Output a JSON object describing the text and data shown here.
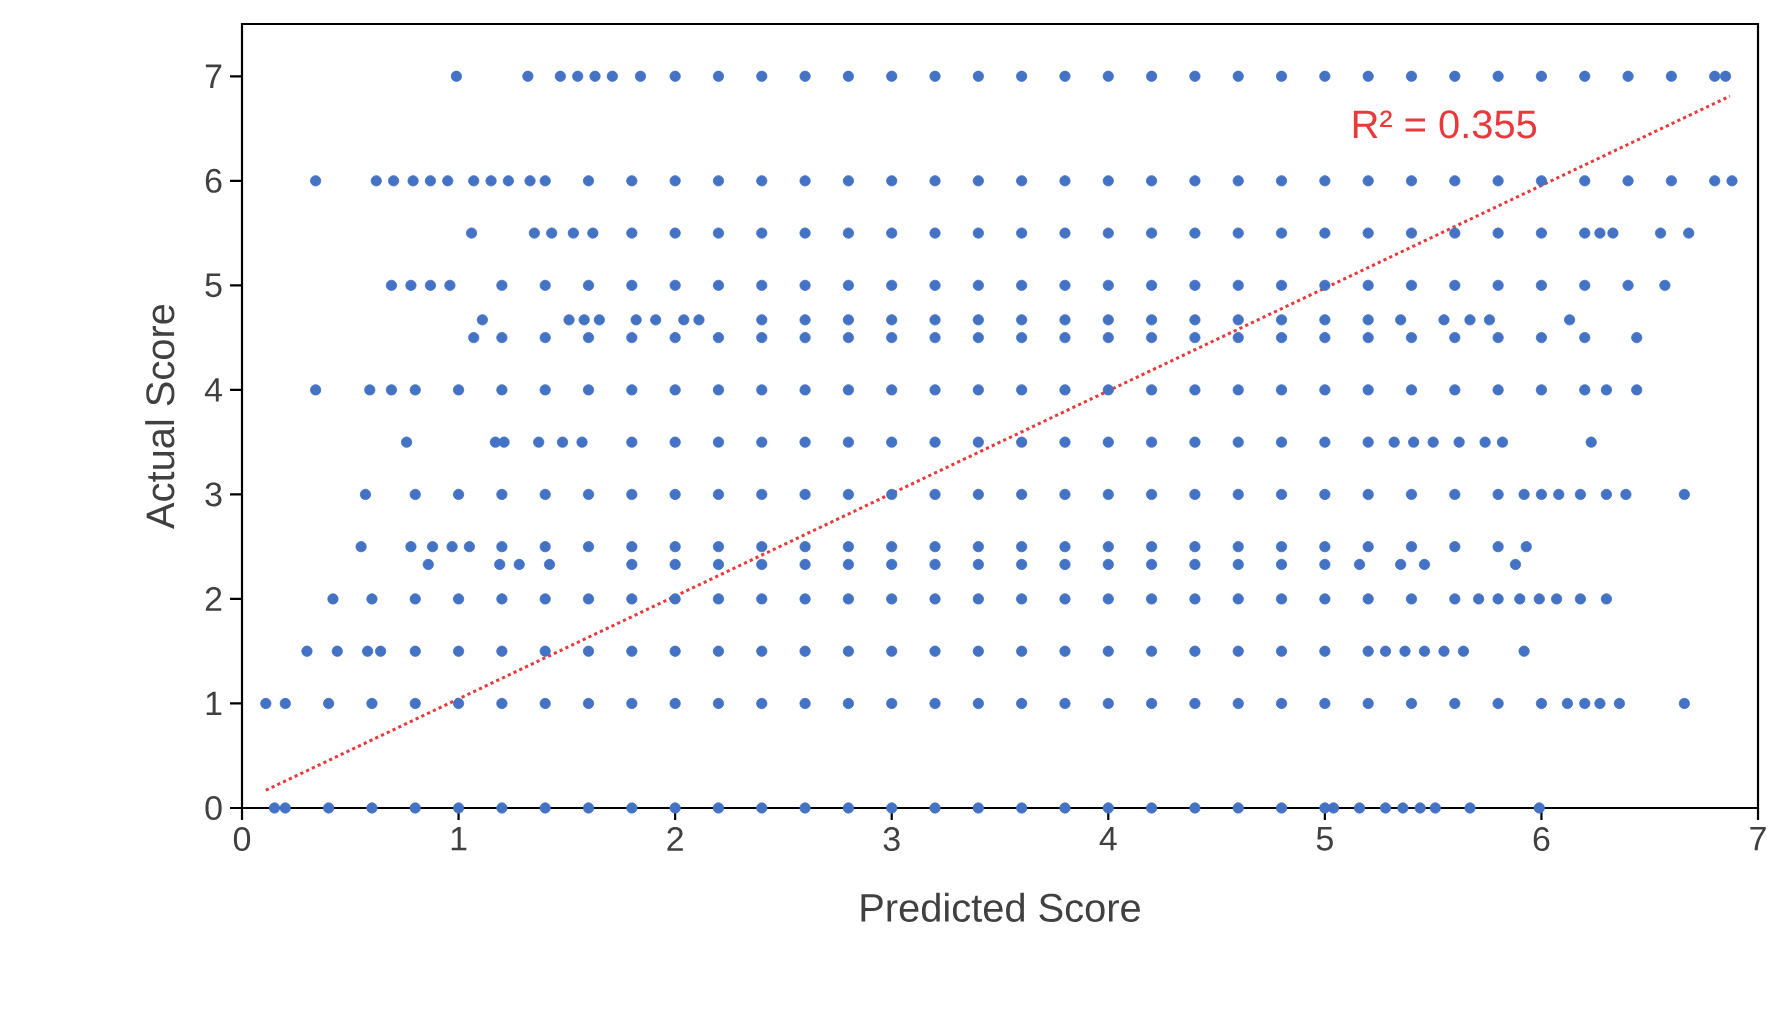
{
  "chart_data": {
    "type": "scatter",
    "xlabel": "Predicted Score",
    "ylabel": "Actual Score",
    "xlim": [
      0,
      7
    ],
    "ylim": [
      0,
      7.5
    ],
    "xticks": [
      0,
      1,
      2,
      3,
      4,
      5,
      6,
      7
    ],
    "yticks": [
      0,
      1,
      2,
      3,
      4,
      5,
      6,
      7
    ],
    "marker": "circle",
    "annotations": [
      "R² = 0.355"
    ],
    "series": [
      {
        "color": "#4472c4",
        "x": [
          0.99,
          1.32,
          1.47,
          1.55,
          1.63,
          1.71,
          1.84,
          2.0,
          2.2,
          2.4,
          2.6,
          2.8,
          3.0,
          3.2,
          3.4,
          3.6,
          3.8,
          4.0,
          4.2,
          4.4,
          4.6,
          4.8,
          5.0,
          5.2,
          5.4,
          5.6,
          5.8,
          6.0,
          6.2,
          6.4,
          6.6,
          6.8,
          6.85
        ],
        "values": [
          7,
          7,
          7,
          7,
          7,
          7,
          7,
          7,
          7,
          7,
          7,
          7,
          7,
          7,
          7,
          7,
          7,
          7,
          7,
          7,
          7,
          7,
          7,
          7,
          7,
          7,
          7,
          7,
          7,
          7,
          7,
          7,
          7
        ]
      },
      {
        "color": "#4472c4",
        "x": [
          0.34,
          0.62,
          0.7,
          0.79,
          0.87,
          0.95,
          1.07,
          1.15,
          1.23,
          1.33,
          1.4,
          1.6,
          1.8,
          2.0,
          2.2,
          2.4,
          2.6,
          2.8,
          3.0,
          3.2,
          3.4,
          3.6,
          3.8,
          4.0,
          4.2,
          4.4,
          4.6,
          4.8,
          5.0,
          5.2,
          5.4,
          5.6,
          5.8,
          6.0,
          6.2,
          6.4,
          6.6,
          6.8,
          6.88
        ],
        "values": [
          6,
          6,
          6,
          6,
          6,
          6,
          6,
          6,
          6,
          6,
          6,
          6,
          6,
          6,
          6,
          6,
          6,
          6,
          6,
          6,
          6,
          6,
          6,
          6,
          6,
          6,
          6,
          6,
          6,
          6,
          6,
          6,
          6,
          6,
          6,
          6,
          6,
          6,
          6
        ]
      },
      {
        "color": "#4472c4",
        "x": [
          1.06,
          1.35,
          1.43,
          1.53,
          1.62,
          1.8,
          2.0,
          2.2,
          2.4,
          2.6,
          2.8,
          3.0,
          3.2,
          3.4,
          3.6,
          3.8,
          4.0,
          4.2,
          4.4,
          4.6,
          4.8,
          5.0,
          5.2,
          5.4,
          5.6,
          5.8,
          6.0,
          6.2,
          6.27,
          6.33,
          6.55,
          6.68
        ],
        "values": [
          5.5,
          5.5,
          5.5,
          5.5,
          5.5,
          5.5,
          5.5,
          5.5,
          5.5,
          5.5,
          5.5,
          5.5,
          5.5,
          5.5,
          5.5,
          5.5,
          5.5,
          5.5,
          5.5,
          5.5,
          5.5,
          5.5,
          5.5,
          5.5,
          5.5,
          5.5,
          5.5,
          5.5,
          5.5,
          5.5,
          5.5,
          5.5
        ]
      },
      {
        "color": "#4472c4",
        "x": [
          0.69,
          0.78,
          0.87,
          0.96,
          1.2,
          1.4,
          1.6,
          1.8,
          2.0,
          2.2,
          2.4,
          2.6,
          2.8,
          3.0,
          3.2,
          3.4,
          3.6,
          3.8,
          4.0,
          4.2,
          4.4,
          4.6,
          4.8,
          5.0,
          5.2,
          5.4,
          5.6,
          5.8,
          6.0,
          6.2,
          6.4,
          6.57
        ],
        "values": [
          5,
          5,
          5,
          5,
          5,
          5,
          5,
          5,
          5,
          5,
          5,
          5,
          5,
          5,
          5,
          5,
          5,
          5,
          5,
          5,
          5,
          5,
          5,
          5,
          5,
          5,
          5,
          5,
          5,
          5,
          5,
          5
        ]
      },
      {
        "color": "#4472c4",
        "x": [
          1.11,
          1.51,
          1.58,
          1.65,
          1.82,
          1.91,
          2.04,
          2.11,
          2.4,
          2.6,
          2.8,
          3.0,
          3.2,
          3.4,
          3.6,
          3.8,
          4.0,
          4.2,
          4.4,
          4.6,
          4.8,
          5.0,
          5.2,
          5.35,
          5.55,
          5.67,
          5.76,
          6.13
        ],
        "values": [
          4.67,
          4.67,
          4.67,
          4.67,
          4.67,
          4.67,
          4.67,
          4.67,
          4.67,
          4.67,
          4.67,
          4.67,
          4.67,
          4.67,
          4.67,
          4.67,
          4.67,
          4.67,
          4.67,
          4.67,
          4.67,
          4.67,
          4.67,
          4.67,
          4.67,
          4.67,
          4.67,
          4.67
        ]
      },
      {
        "color": "#4472c4",
        "x": [
          1.07,
          1.2,
          1.4,
          1.6,
          1.8,
          2.0,
          2.2,
          2.4,
          2.6,
          2.8,
          3.0,
          3.2,
          3.4,
          3.6,
          3.8,
          4.0,
          4.2,
          4.4,
          4.6,
          4.8,
          5.0,
          5.2,
          5.4,
          5.6,
          5.8,
          6.0,
          6.2,
          6.44
        ],
        "values": [
          4.5,
          4.5,
          4.5,
          4.5,
          4.5,
          4.5,
          4.5,
          4.5,
          4.5,
          4.5,
          4.5,
          4.5,
          4.5,
          4.5,
          4.5,
          4.5,
          4.5,
          4.5,
          4.5,
          4.5,
          4.5,
          4.5,
          4.5,
          4.5,
          4.5,
          4.5,
          4.5,
          4.5
        ]
      },
      {
        "color": "#4472c4",
        "x": [
          0.34,
          0.59,
          0.69,
          0.8,
          1.0,
          1.2,
          1.4,
          1.6,
          1.8,
          2.0,
          2.2,
          2.4,
          2.6,
          2.8,
          3.0,
          3.2,
          3.4,
          3.6,
          3.8,
          4.0,
          4.2,
          4.4,
          4.6,
          4.8,
          5.0,
          5.2,
          5.4,
          5.6,
          5.8,
          6.0,
          6.2,
          6.3,
          6.44
        ],
        "values": [
          4,
          4,
          4,
          4,
          4,
          4,
          4,
          4,
          4,
          4,
          4,
          4,
          4,
          4,
          4,
          4,
          4,
          4,
          4,
          4,
          4,
          4,
          4,
          4,
          4,
          4,
          4,
          4,
          4,
          4,
          4,
          4,
          4
        ]
      },
      {
        "color": "#4472c4",
        "x": [
          0.76,
          1.17,
          1.21,
          1.37,
          1.48,
          1.57,
          1.8,
          2.0,
          2.2,
          2.4,
          2.6,
          2.8,
          3.0,
          3.2,
          3.4,
          3.6,
          3.8,
          4.0,
          4.2,
          4.4,
          4.6,
          4.8,
          5.0,
          5.2,
          5.32,
          5.41,
          5.5,
          5.62,
          5.74,
          5.82,
          6.23
        ],
        "values": [
          3.5,
          3.5,
          3.5,
          3.5,
          3.5,
          3.5,
          3.5,
          3.5,
          3.5,
          3.5,
          3.5,
          3.5,
          3.5,
          3.5,
          3.5,
          3.5,
          3.5,
          3.5,
          3.5,
          3.5,
          3.5,
          3.5,
          3.5,
          3.5,
          3.5,
          3.5,
          3.5,
          3.5,
          3.5,
          3.5,
          3.5
        ]
      },
      {
        "color": "#4472c4",
        "x": [
          0.57,
          0.8,
          1.0,
          1.2,
          1.4,
          1.6,
          1.8,
          2.0,
          2.2,
          2.4,
          2.6,
          2.8,
          3.0,
          3.2,
          3.4,
          3.6,
          3.8,
          4.0,
          4.2,
          4.4,
          4.6,
          4.8,
          5.0,
          5.2,
          5.4,
          5.6,
          5.8,
          5.92,
          6.0,
          6.08,
          6.18,
          6.3,
          6.39,
          6.66
        ],
        "values": [
          3,
          3,
          3,
          3,
          3,
          3,
          3,
          3,
          3,
          3,
          3,
          3,
          3,
          3,
          3,
          3,
          3,
          3,
          3,
          3,
          3,
          3,
          3,
          3,
          3,
          3,
          3,
          3,
          3,
          3,
          3,
          3,
          3,
          3
        ]
      },
      {
        "color": "#4472c4",
        "x": [
          0.55,
          0.78,
          0.88,
          0.97,
          1.05,
          1.2,
          1.4,
          1.6,
          1.8,
          2.0,
          2.2,
          2.4,
          2.6,
          2.8,
          3.0,
          3.2,
          3.4,
          3.6,
          3.8,
          4.0,
          4.2,
          4.4,
          4.6,
          4.8,
          5.0,
          5.2,
          5.4,
          5.6,
          5.8,
          5.93
        ],
        "values": [
          2.5,
          2.5,
          2.5,
          2.5,
          2.5,
          2.5,
          2.5,
          2.5,
          2.5,
          2.5,
          2.5,
          2.5,
          2.5,
          2.5,
          2.5,
          2.5,
          2.5,
          2.5,
          2.5,
          2.5,
          2.5,
          2.5,
          2.5,
          2.5,
          2.5,
          2.5,
          2.5,
          2.5,
          2.5,
          2.5
        ]
      },
      {
        "color": "#4472c4",
        "x": [
          0.86,
          1.19,
          1.28,
          1.42,
          1.8,
          2.0,
          2.2,
          2.4,
          2.6,
          2.8,
          3.0,
          3.2,
          3.4,
          3.6,
          3.8,
          4.0,
          4.2,
          4.4,
          4.6,
          4.8,
          5.0,
          5.16,
          5.35,
          5.46,
          5.88
        ],
        "values": [
          2.33,
          2.33,
          2.33,
          2.33,
          2.33,
          2.33,
          2.33,
          2.33,
          2.33,
          2.33,
          2.33,
          2.33,
          2.33,
          2.33,
          2.33,
          2.33,
          2.33,
          2.33,
          2.33,
          2.33,
          2.33,
          2.33,
          2.33,
          2.33,
          2.33
        ]
      },
      {
        "color": "#4472c4",
        "x": [
          0.42,
          0.6,
          0.8,
          1.0,
          1.2,
          1.4,
          1.6,
          1.8,
          2.0,
          2.2,
          2.4,
          2.6,
          2.8,
          3.0,
          3.2,
          3.4,
          3.6,
          3.8,
          4.0,
          4.2,
          4.4,
          4.6,
          4.8,
          5.0,
          5.2,
          5.4,
          5.6,
          5.71,
          5.8,
          5.9,
          5.99,
          6.07,
          6.18,
          6.3
        ],
        "values": [
          2,
          2,
          2,
          2,
          2,
          2,
          2,
          2,
          2,
          2,
          2,
          2,
          2,
          2,
          2,
          2,
          2,
          2,
          2,
          2,
          2,
          2,
          2,
          2,
          2,
          2,
          2,
          2,
          2,
          2,
          2,
          2,
          2,
          2
        ]
      },
      {
        "color": "#4472c4",
        "x": [
          0.3,
          0.44,
          0.58,
          0.64,
          0.8,
          1.0,
          1.2,
          1.4,
          1.6,
          1.8,
          2.0,
          2.2,
          2.4,
          2.6,
          2.8,
          3.0,
          3.2,
          3.4,
          3.6,
          3.8,
          4.0,
          4.2,
          4.4,
          4.6,
          4.8,
          5.0,
          5.2,
          5.28,
          5.37,
          5.46,
          5.55,
          5.64,
          5.92
        ],
        "values": [
          1.5,
          1.5,
          1.5,
          1.5,
          1.5,
          1.5,
          1.5,
          1.5,
          1.5,
          1.5,
          1.5,
          1.5,
          1.5,
          1.5,
          1.5,
          1.5,
          1.5,
          1.5,
          1.5,
          1.5,
          1.5,
          1.5,
          1.5,
          1.5,
          1.5,
          1.5,
          1.5,
          1.5,
          1.5,
          1.5,
          1.5,
          1.5,
          1.5
        ]
      },
      {
        "color": "#4472c4",
        "x": [
          0.11,
          0.2,
          0.4,
          0.6,
          0.8,
          1.0,
          1.2,
          1.4,
          1.6,
          1.8,
          2.0,
          2.2,
          2.4,
          2.6,
          2.8,
          3.0,
          3.2,
          3.4,
          3.6,
          3.8,
          4.0,
          4.2,
          4.4,
          4.6,
          4.8,
          5.0,
          5.2,
          5.4,
          5.6,
          5.8,
          6.0,
          6.12,
          6.2,
          6.27,
          6.36,
          6.66
        ],
        "values": [
          1,
          1,
          1,
          1,
          1,
          1,
          1,
          1,
          1,
          1,
          1,
          1,
          1,
          1,
          1,
          1,
          1,
          1,
          1,
          1,
          1,
          1,
          1,
          1,
          1,
          1,
          1,
          1,
          1,
          1,
          1,
          1,
          1,
          1,
          1,
          1
        ]
      },
      {
        "color": "#4472c4",
        "x": [
          0.15,
          0.2,
          0.4,
          0.6,
          0.8,
          1.0,
          1.2,
          1.4,
          1.6,
          1.8,
          2.0,
          2.2,
          2.4,
          2.6,
          2.8,
          3.0,
          3.2,
          3.4,
          3.6,
          3.8,
          4.0,
          4.2,
          4.4,
          4.6,
          4.8,
          5.0,
          5.04,
          5.16,
          5.28,
          5.36,
          5.44,
          5.51,
          5.67,
          5.99
        ],
        "values": [
          0,
          0,
          0,
          0,
          0,
          0,
          0,
          0,
          0,
          0,
          0,
          0,
          0,
          0,
          0,
          0,
          0,
          0,
          0,
          0,
          0,
          0,
          0,
          0,
          0,
          0,
          0,
          0,
          0,
          0,
          0,
          0,
          0,
          0
        ]
      },
      {
        "type": "line",
        "color": "#e8393b",
        "line_style": "dotted",
        "marker": "none",
        "x": [
          0.11,
          6.87
        ],
        "values": [
          0.17,
          6.81
        ]
      }
    ]
  }
}
